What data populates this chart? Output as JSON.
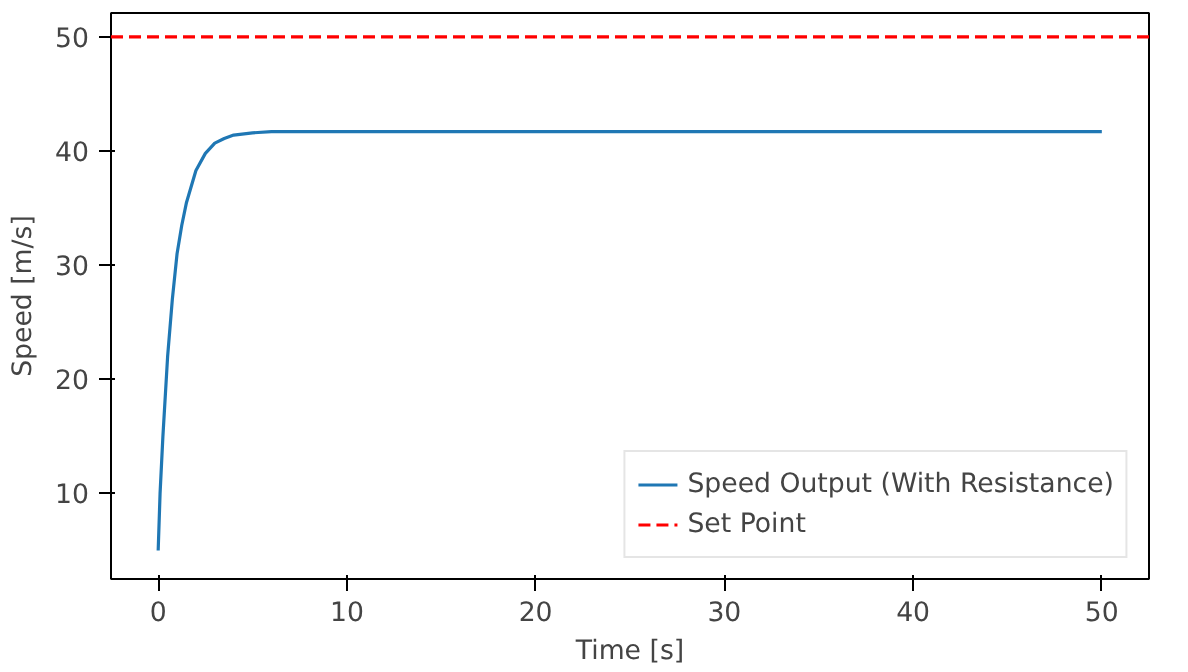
{
  "chart_data": {
    "type": "line",
    "xlabel": "Time [s]",
    "ylabel": "Speed [m/s]",
    "xlim": [
      -2.5,
      52.5
    ],
    "ylim": [
      2.5,
      52.1
    ],
    "xticks": [
      0,
      10,
      20,
      30,
      40,
      50
    ],
    "yticks": [
      10,
      20,
      30,
      40,
      50
    ],
    "series": [
      {
        "name": "Speed Output (With Resistance)",
        "color": "#1f77b4",
        "x": [
          0,
          0.1,
          0.25,
          0.5,
          0.75,
          1,
          1.25,
          1.5,
          2,
          2.5,
          3,
          3.5,
          4,
          5,
          6,
          8,
          10,
          20,
          30,
          40,
          50
        ],
        "values": [
          5,
          10,
          15,
          22,
          27,
          31,
          33.5,
          35.5,
          38.3,
          39.8,
          40.7,
          41.1,
          41.4,
          41.6,
          41.7,
          41.7,
          41.7,
          41.7,
          41.7,
          41.7,
          41.7
        ]
      }
    ],
    "ref_lines": [
      {
        "axis": "y",
        "value": 50,
        "label": "Set Point",
        "color": "#ff0000",
        "line_style": "dashed"
      }
    ],
    "legend": "bottom right",
    "grid": false
  }
}
